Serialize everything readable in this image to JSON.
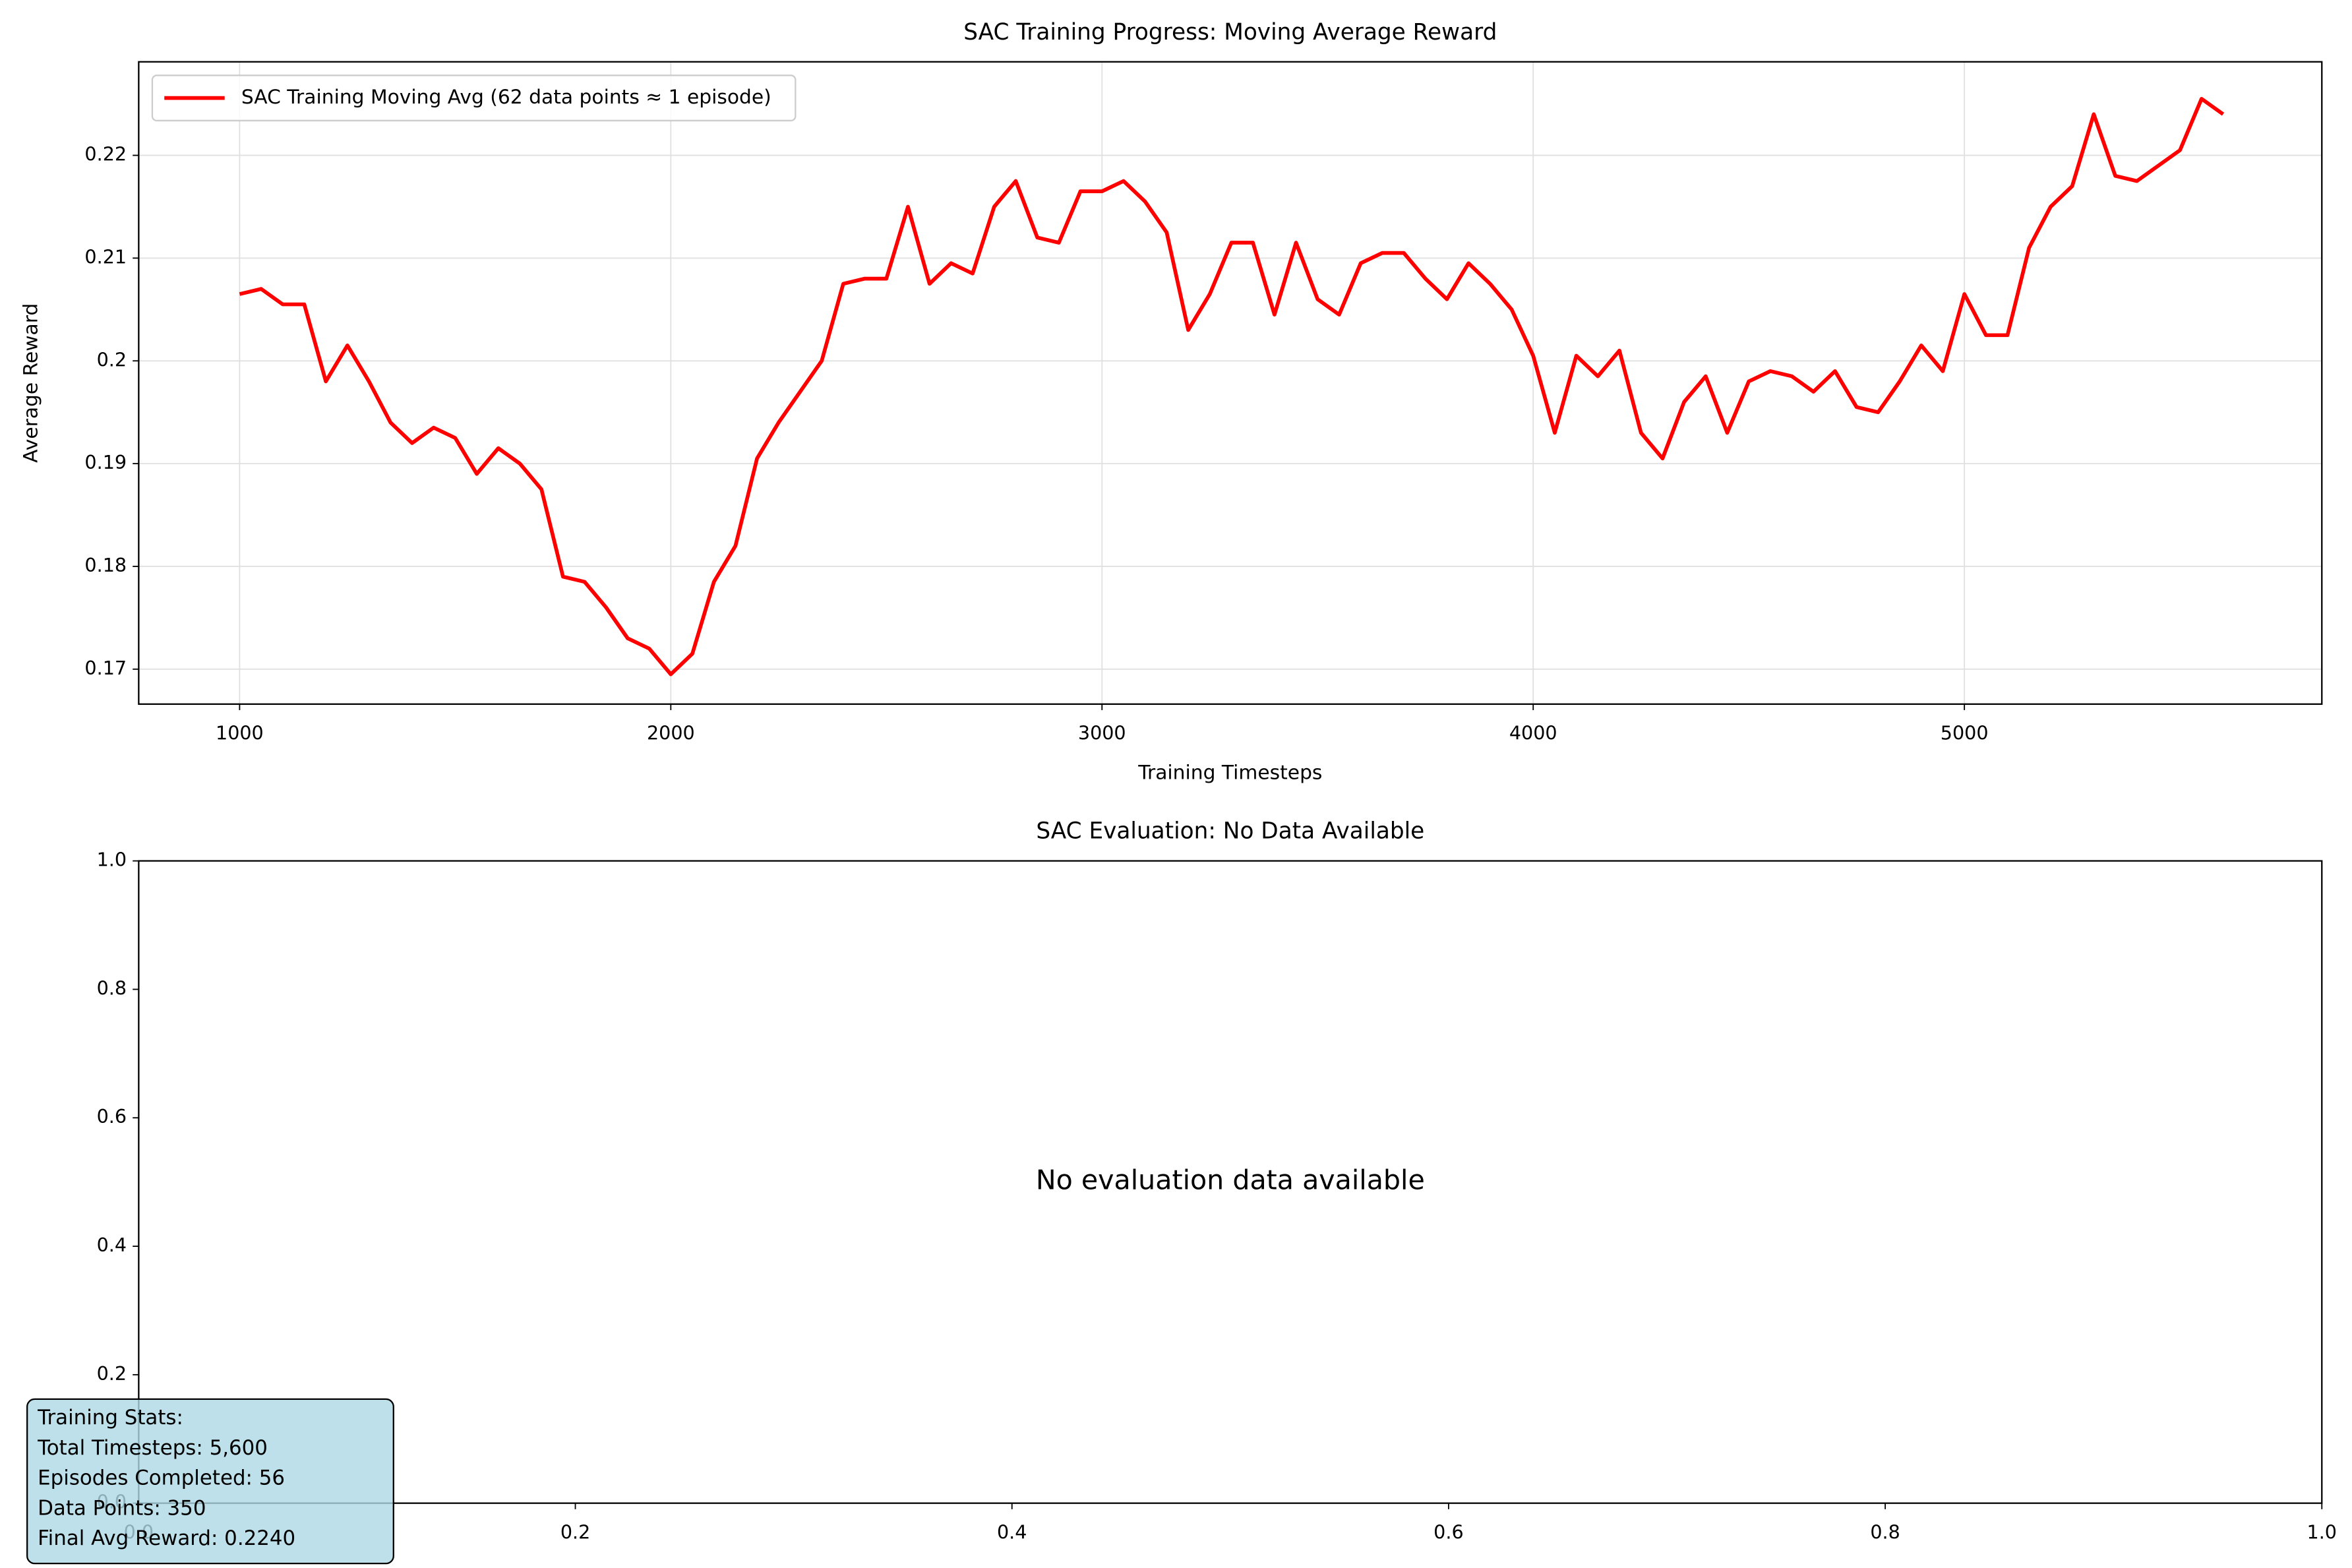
{
  "chart_data": [
    {
      "type": "line",
      "title": "SAC Training Progress: Moving Average Reward",
      "xlabel": "Training Timesteps",
      "ylabel": "Average Reward",
      "x": [
        1000,
        1050,
        1100,
        1150,
        1200,
        1250,
        1300,
        1350,
        1400,
        1450,
        1500,
        1550,
        1600,
        1650,
        1700,
        1750,
        1800,
        1850,
        1900,
        1950,
        2000,
        2050,
        2100,
        2150,
        2200,
        2250,
        2300,
        2350,
        2400,
        2450,
        2500,
        2550,
        2600,
        2650,
        2700,
        2750,
        2800,
        2850,
        2900,
        2950,
        3000,
        3050,
        3100,
        3150,
        3200,
        3250,
        3300,
        3350,
        3400,
        3450,
        3500,
        3550,
        3600,
        3650,
        3700,
        3750,
        3800,
        3850,
        3900,
        3950,
        4000,
        4050,
        4100,
        4150,
        4200,
        4250,
        4300,
        4350,
        4400,
        4450,
        4500,
        4550,
        4600,
        4650,
        4700,
        4750,
        4800,
        4850,
        4900,
        4950,
        5000,
        5050,
        5100,
        5150,
        5200,
        5250,
        5300,
        5350,
        5400,
        5450,
        5500,
        5550,
        5600
      ],
      "series": [
        {
          "name": "SAC Training Moving Avg (62 data points ≈ 1 episode)",
          "color": "#ff0000",
          "values": [
            0.2065,
            0.207,
            0.2055,
            0.2055,
            0.198,
            0.2015,
            0.198,
            0.194,
            0.192,
            0.1935,
            0.1925,
            0.189,
            0.1915,
            0.19,
            0.1875,
            0.179,
            0.1785,
            0.176,
            0.173,
            0.172,
            0.1695,
            0.1715,
            0.1785,
            0.182,
            0.1905,
            0.194,
            0.197,
            0.2,
            0.2075,
            0.208,
            0.208,
            0.215,
            0.2075,
            0.2095,
            0.2085,
            0.215,
            0.2175,
            0.212,
            0.2115,
            0.2165,
            0.2165,
            0.2175,
            0.2155,
            0.2125,
            0.203,
            0.2065,
            0.2115,
            0.2115,
            0.2045,
            0.2115,
            0.206,
            0.2045,
            0.2095,
            0.2105,
            0.2105,
            0.208,
            0.206,
            0.2095,
            0.2075,
            0.205,
            0.2005,
            0.193,
            0.2005,
            0.1985,
            0.201,
            0.193,
            0.1905,
            0.196,
            0.1985,
            0.193,
            0.198,
            0.199,
            0.1985,
            0.197,
            0.199,
            0.1955,
            0.195,
            0.198,
            0.2015,
            0.199,
            0.2065,
            0.2025,
            0.2025,
            0.211,
            0.215,
            0.217,
            0.224,
            0.218,
            0.2175,
            0.219,
            0.2205,
            0.2255,
            0.224
          ]
        }
      ],
      "xlim": [
        766,
        5829
      ],
      "xticks": [
        1000,
        2000,
        3000,
        4000,
        5000
      ],
      "ylim": [
        0.1666,
        0.2291
      ],
      "yticks": [
        0.17,
        0.18,
        0.19,
        0.2,
        0.21,
        0.22
      ],
      "grid": true,
      "legend": "upper left"
    },
    {
      "type": "empty",
      "title": "SAC Evaluation: No Data Available",
      "annotation": "No evaluation data available",
      "xlim": [
        0,
        1
      ],
      "xticks": [
        {
          "value": 0,
          "label": "0.0"
        },
        0.2,
        0.4,
        0.6,
        0.8,
        {
          "value": 1,
          "label": "1.0"
        }
      ],
      "ylim": [
        0,
        1
      ],
      "yticks": [
        {
          "value": 0,
          "label": "0.0"
        },
        0.2,
        0.4,
        0.6,
        0.8,
        {
          "value": 1,
          "label": "1.0"
        }
      ],
      "grid": false,
      "stats_box": [
        "Training Stats:",
        "Total Timesteps: 5,600",
        "Episodes Completed: 56",
        "Data Points: 350",
        "Final Avg Reward: 0.2240"
      ]
    }
  ]
}
